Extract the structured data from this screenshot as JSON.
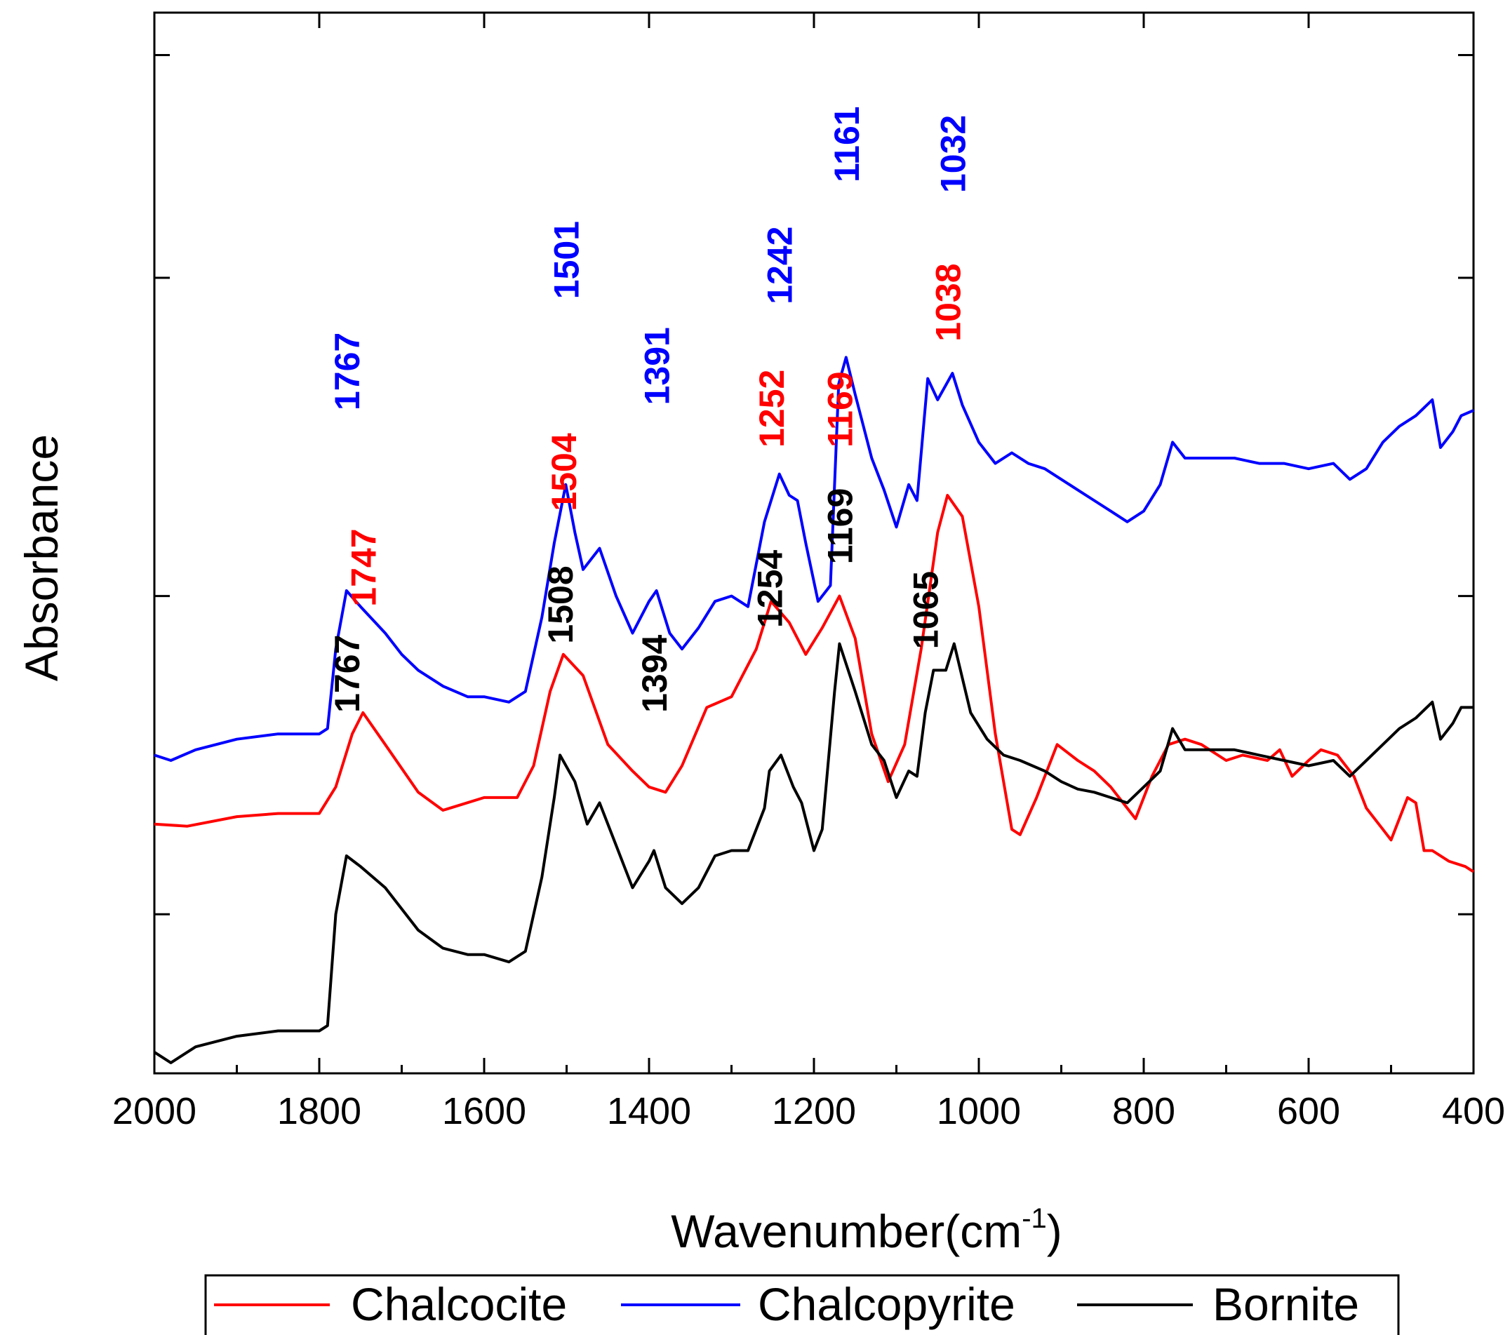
{
  "chart_data": {
    "type": "line",
    "title": "",
    "xlabel": "Wavenumber(cm",
    "xlabel_sup": "-1",
    "xlabel_end": ")",
    "ylabel": "Absorbance",
    "xlim": [
      2000,
      400
    ],
    "ylim": [
      0,
      10
    ],
    "x_ticks": [
      2000,
      1800,
      1600,
      1400,
      1200,
      1000,
      800,
      600,
      400
    ],
    "legend_position": "bottom",
    "series": [
      {
        "name": "Chalcocite",
        "color": "#ff0000",
        "points": [
          [
            2000,
            2.35
          ],
          [
            1960,
            2.33
          ],
          [
            1900,
            2.42
          ],
          [
            1850,
            2.45
          ],
          [
            1800,
            2.45
          ],
          [
            1780,
            2.7
          ],
          [
            1760,
            3.2
          ],
          [
            1747,
            3.4
          ],
          [
            1720,
            3.1
          ],
          [
            1680,
            2.65
          ],
          [
            1650,
            2.48
          ],
          [
            1600,
            2.6
          ],
          [
            1560,
            2.6
          ],
          [
            1540,
            2.9
          ],
          [
            1520,
            3.6
          ],
          [
            1504,
            3.95
          ],
          [
            1480,
            3.75
          ],
          [
            1450,
            3.1
          ],
          [
            1420,
            2.85
          ],
          [
            1400,
            2.7
          ],
          [
            1380,
            2.65
          ],
          [
            1360,
            2.9
          ],
          [
            1330,
            3.45
          ],
          [
            1300,
            3.55
          ],
          [
            1270,
            4.0
          ],
          [
            1252,
            4.45
          ],
          [
            1230,
            4.25
          ],
          [
            1210,
            3.95
          ],
          [
            1190,
            4.2
          ],
          [
            1169,
            4.5
          ],
          [
            1150,
            4.1
          ],
          [
            1130,
            3.2
          ],
          [
            1110,
            2.75
          ],
          [
            1090,
            3.1
          ],
          [
            1070,
            4.0
          ],
          [
            1050,
            5.1
          ],
          [
            1038,
            5.45
          ],
          [
            1020,
            5.25
          ],
          [
            1000,
            4.4
          ],
          [
            980,
            3.2
          ],
          [
            960,
            2.3
          ],
          [
            950,
            2.25
          ],
          [
            930,
            2.6
          ],
          [
            905,
            3.1
          ],
          [
            880,
            2.95
          ],
          [
            860,
            2.85
          ],
          [
            840,
            2.7
          ],
          [
            820,
            2.5
          ],
          [
            810,
            2.4
          ],
          [
            790,
            2.8
          ],
          [
            770,
            3.1
          ],
          [
            750,
            3.15
          ],
          [
            730,
            3.1
          ],
          [
            700,
            2.95
          ],
          [
            680,
            3.0
          ],
          [
            650,
            2.95
          ],
          [
            635,
            3.05
          ],
          [
            620,
            2.8
          ],
          [
            600,
            2.95
          ],
          [
            585,
            3.05
          ],
          [
            565,
            3.0
          ],
          [
            545,
            2.8
          ],
          [
            530,
            2.5
          ],
          [
            510,
            2.3
          ],
          [
            500,
            2.2
          ],
          [
            480,
            2.6
          ],
          [
            470,
            2.55
          ],
          [
            460,
            2.1
          ],
          [
            450,
            2.1
          ],
          [
            430,
            2.0
          ],
          [
            410,
            1.95
          ],
          [
            400,
            1.9
          ]
        ]
      },
      {
        "name": "Chalcopyrite",
        "color": "#0000ff",
        "points": [
          [
            2000,
            3.0
          ],
          [
            1980,
            2.95
          ],
          [
            1950,
            3.05
          ],
          [
            1900,
            3.15
          ],
          [
            1850,
            3.2
          ],
          [
            1800,
            3.2
          ],
          [
            1790,
            3.25
          ],
          [
            1780,
            4.0
          ],
          [
            1767,
            4.55
          ],
          [
            1750,
            4.4
          ],
          [
            1720,
            4.15
          ],
          [
            1700,
            3.95
          ],
          [
            1680,
            3.8
          ],
          [
            1650,
            3.65
          ],
          [
            1620,
            3.55
          ],
          [
            1600,
            3.55
          ],
          [
            1570,
            3.5
          ],
          [
            1550,
            3.6
          ],
          [
            1530,
            4.3
          ],
          [
            1515,
            5.0
          ],
          [
            1501,
            5.55
          ],
          [
            1490,
            5.1
          ],
          [
            1480,
            4.75
          ],
          [
            1460,
            4.95
          ],
          [
            1440,
            4.5
          ],
          [
            1420,
            4.15
          ],
          [
            1400,
            4.45
          ],
          [
            1391,
            4.55
          ],
          [
            1375,
            4.15
          ],
          [
            1360,
            4.0
          ],
          [
            1340,
            4.2
          ],
          [
            1320,
            4.45
          ],
          [
            1300,
            4.5
          ],
          [
            1280,
            4.4
          ],
          [
            1260,
            5.2
          ],
          [
            1242,
            5.65
          ],
          [
            1230,
            5.45
          ],
          [
            1220,
            5.4
          ],
          [
            1210,
            5.0
          ],
          [
            1195,
            4.45
          ],
          [
            1180,
            4.6
          ],
          [
            1170,
            6.5
          ],
          [
            1161,
            6.75
          ],
          [
            1150,
            6.4
          ],
          [
            1130,
            5.8
          ],
          [
            1115,
            5.5
          ],
          [
            1100,
            5.15
          ],
          [
            1085,
            5.55
          ],
          [
            1075,
            5.4
          ],
          [
            1062,
            6.55
          ],
          [
            1050,
            6.35
          ],
          [
            1032,
            6.6
          ],
          [
            1020,
            6.3
          ],
          [
            1000,
            5.95
          ],
          [
            980,
            5.75
          ],
          [
            960,
            5.85
          ],
          [
            940,
            5.75
          ],
          [
            920,
            5.7
          ],
          [
            900,
            5.6
          ],
          [
            880,
            5.5
          ],
          [
            860,
            5.4
          ],
          [
            840,
            5.3
          ],
          [
            820,
            5.2
          ],
          [
            800,
            5.3
          ],
          [
            780,
            5.55
          ],
          [
            765,
            5.95
          ],
          [
            750,
            5.8
          ],
          [
            720,
            5.8
          ],
          [
            690,
            5.8
          ],
          [
            660,
            5.75
          ],
          [
            630,
            5.75
          ],
          [
            600,
            5.7
          ],
          [
            570,
            5.75
          ],
          [
            550,
            5.6
          ],
          [
            530,
            5.7
          ],
          [
            510,
            5.95
          ],
          [
            490,
            6.1
          ],
          [
            470,
            6.2
          ],
          [
            450,
            6.35
          ],
          [
            440,
            5.9
          ],
          [
            425,
            6.05
          ],
          [
            415,
            6.2
          ],
          [
            400,
            6.25
          ]
        ]
      },
      {
        "name": "Bornite",
        "color": "#000000",
        "points": [
          [
            2000,
            0.2
          ],
          [
            1980,
            0.1
          ],
          [
            1950,
            0.25
          ],
          [
            1900,
            0.35
          ],
          [
            1850,
            0.4
          ],
          [
            1800,
            0.4
          ],
          [
            1790,
            0.45
          ],
          [
            1780,
            1.5
          ],
          [
            1767,
            2.05
          ],
          [
            1750,
            1.95
          ],
          [
            1720,
            1.75
          ],
          [
            1700,
            1.55
          ],
          [
            1680,
            1.35
          ],
          [
            1650,
            1.18
          ],
          [
            1620,
            1.12
          ],
          [
            1600,
            1.12
          ],
          [
            1570,
            1.05
          ],
          [
            1550,
            1.15
          ],
          [
            1530,
            1.85
          ],
          [
            1515,
            2.6
          ],
          [
            1508,
            3.0
          ],
          [
            1490,
            2.75
          ],
          [
            1475,
            2.35
          ],
          [
            1460,
            2.55
          ],
          [
            1440,
            2.15
          ],
          [
            1420,
            1.75
          ],
          [
            1400,
            2.0
          ],
          [
            1394,
            2.1
          ],
          [
            1380,
            1.75
          ],
          [
            1360,
            1.6
          ],
          [
            1340,
            1.75
          ],
          [
            1320,
            2.05
          ],
          [
            1300,
            2.1
          ],
          [
            1280,
            2.1
          ],
          [
            1260,
            2.5
          ],
          [
            1254,
            2.85
          ],
          [
            1240,
            3.0
          ],
          [
            1225,
            2.7
          ],
          [
            1215,
            2.55
          ],
          [
            1200,
            2.1
          ],
          [
            1190,
            2.3
          ],
          [
            1175,
            3.6
          ],
          [
            1169,
            4.05
          ],
          [
            1150,
            3.6
          ],
          [
            1130,
            3.1
          ],
          [
            1115,
            2.95
          ],
          [
            1100,
            2.6
          ],
          [
            1085,
            2.85
          ],
          [
            1075,
            2.8
          ],
          [
            1065,
            3.4
          ],
          [
            1055,
            3.8
          ],
          [
            1040,
            3.8
          ],
          [
            1030,
            4.05
          ],
          [
            1010,
            3.4
          ],
          [
            990,
            3.15
          ],
          [
            970,
            3.0
          ],
          [
            950,
            2.95
          ],
          [
            920,
            2.85
          ],
          [
            900,
            2.75
          ],
          [
            880,
            2.68
          ],
          [
            860,
            2.65
          ],
          [
            840,
            2.6
          ],
          [
            820,
            2.55
          ],
          [
            800,
            2.7
          ],
          [
            780,
            2.85
          ],
          [
            765,
            3.25
          ],
          [
            750,
            3.05
          ],
          [
            720,
            3.05
          ],
          [
            690,
            3.05
          ],
          [
            660,
            3.0
          ],
          [
            630,
            2.95
          ],
          [
            600,
            2.9
          ],
          [
            570,
            2.95
          ],
          [
            550,
            2.8
          ],
          [
            530,
            2.95
          ],
          [
            510,
            3.1
          ],
          [
            490,
            3.25
          ],
          [
            470,
            3.35
          ],
          [
            450,
            3.5
          ],
          [
            440,
            3.15
          ],
          [
            425,
            3.3
          ],
          [
            415,
            3.45
          ],
          [
            400,
            3.45
          ]
        ]
      }
    ],
    "annotations": [
      {
        "series": "Chalcopyrite",
        "text": "1767",
        "x": 1767,
        "y": 6.25,
        "color": "#0000ff"
      },
      {
        "series": "Chalcopyrite",
        "text": "1501",
        "x": 1501,
        "y": 7.3,
        "color": "#0000ff"
      },
      {
        "series": "Chalcopyrite",
        "text": "1391",
        "x": 1391,
        "y": 6.3,
        "color": "#0000ff"
      },
      {
        "series": "Chalcopyrite",
        "text": "1242",
        "x": 1242,
        "y": 7.25,
        "color": "#0000ff"
      },
      {
        "series": "Chalcopyrite",
        "text": "1161",
        "x": 1161,
        "y": 8.4,
        "color": "#0000ff"
      },
      {
        "series": "Chalcopyrite",
        "text": "1032",
        "x": 1032,
        "y": 8.3,
        "color": "#0000ff"
      },
      {
        "series": "Chalcocite",
        "text": "1747",
        "x": 1747,
        "y": 4.4,
        "color": "#ff0000"
      },
      {
        "series": "Chalcocite",
        "text": "1504",
        "x": 1504,
        "y": 5.3,
        "color": "#ff0000"
      },
      {
        "series": "Chalcocite",
        "text": "1252",
        "x": 1252,
        "y": 5.9,
        "color": "#ff0000"
      },
      {
        "series": "Chalcocite",
        "text": "1169",
        "x": 1169,
        "y": 5.9,
        "color": "#ff0000"
      },
      {
        "series": "Chalcocite",
        "text": "1038",
        "x": 1038,
        "y": 6.9,
        "color": "#ff0000"
      },
      {
        "series": "Bornite",
        "text": "1767",
        "x": 1767,
        "y": 3.4,
        "color": "#000000"
      },
      {
        "series": "Bornite",
        "text": "1508",
        "x": 1508,
        "y": 4.05,
        "color": "#000000"
      },
      {
        "series": "Bornite",
        "text": "1394",
        "x": 1394,
        "y": 3.4,
        "color": "#000000"
      },
      {
        "series": "Bornite",
        "text": "1254",
        "x": 1254,
        "y": 4.2,
        "color": "#000000"
      },
      {
        "series": "Bornite",
        "text": "1169",
        "x": 1169,
        "y": 4.8,
        "color": "#000000"
      },
      {
        "series": "Bornite",
        "text": "1065",
        "x": 1065,
        "y": 4.0,
        "color": "#000000"
      }
    ]
  }
}
